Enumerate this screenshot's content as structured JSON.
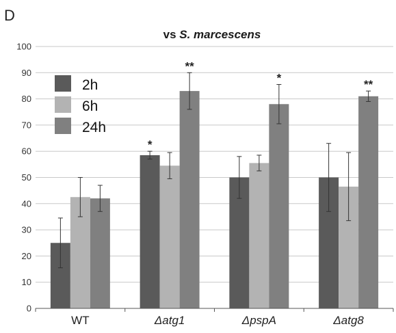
{
  "panel_label": "D",
  "title_prefix": "vs ",
  "title_italic": "S. marcescens",
  "colors": {
    "2h": "#5a5a5a",
    "6h": "#b3b3b3",
    "24h": "#808080",
    "grid": "#c8c8c8"
  },
  "chart_data": {
    "type": "bar",
    "title": "vs S. marcescens",
    "xlabel": "",
    "ylabel": "",
    "ylim": [
      0,
      100
    ],
    "yticks": [
      "0",
      "10",
      "20",
      "30",
      "40",
      "50",
      "60",
      "70",
      "80",
      "90",
      "100"
    ],
    "grid": true,
    "legend_position": "top-left",
    "categories": [
      "WT",
      "Δatg1",
      "ΔpspA",
      "Δatg8"
    ],
    "categories_italic": [
      false,
      true,
      true,
      true
    ],
    "series": [
      {
        "name": "2h",
        "color": "#5a5a5a",
        "values": [
          25,
          58.5,
          50,
          50
        ],
        "errors": [
          9.5,
          1.5,
          8,
          13
        ]
      },
      {
        "name": "6h",
        "color": "#b3b3b3",
        "values": [
          42.5,
          54.5,
          55.5,
          46.5
        ],
        "errors": [
          7.5,
          5,
          3,
          13
        ]
      },
      {
        "name": "24h",
        "color": "#808080",
        "values": [
          42,
          83,
          78,
          81
        ],
        "errors": [
          5,
          7,
          7.5,
          2
        ]
      }
    ],
    "significance": [
      {
        "category": "Δatg1",
        "series": "2h",
        "label": "*"
      },
      {
        "category": "Δatg1",
        "series": "24h",
        "label": "**"
      },
      {
        "category": "ΔpspA",
        "series": "24h",
        "label": "*"
      },
      {
        "category": "Δatg8",
        "series": "24h",
        "label": "**"
      }
    ]
  }
}
